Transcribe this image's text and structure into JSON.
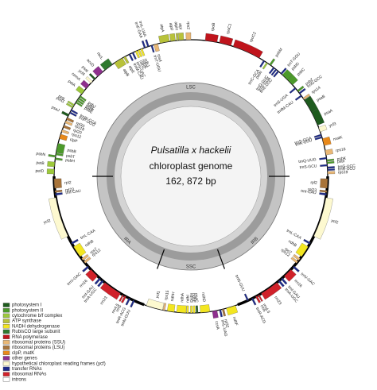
{
  "genome": {
    "title": "Pulsatilla x hackelii",
    "subtitle": "chloroplast genome",
    "length": "162, 872 bp"
  },
  "regions": {
    "lsc": "LSC",
    "ssc": "SSC",
    "ira": "IRA",
    "irb": "IRB"
  },
  "genes": [
    {
      "label": "petD",
      "color": "#9dc93b"
    },
    {
      "label": "petB",
      "color": "#9dc93b"
    },
    {
      "label": "psbH",
      "color": "#4c9a2a"
    },
    {
      "label": "psbN",
      "color": "#4c9a2a"
    },
    {
      "label": "psbT",
      "color": "#4c9a2a"
    },
    {
      "label": "psbB",
      "color": "#4c9a2a"
    },
    {
      "label": "clpP",
      "color": "#e8891a"
    },
    {
      "label": "rps12",
      "color": "#e9b774"
    },
    {
      "label": "rpl20",
      "color": "#a8743a"
    },
    {
      "label": "rps18",
      "color": "#e9b774"
    },
    {
      "label": "rpl33",
      "color": "#a8743a"
    },
    {
      "label": "psaJ",
      "color": "#1e5b1e"
    },
    {
      "label": "trnP-UGG",
      "color": "#1d2a8a"
    },
    {
      "label": "trnW-CCA",
      "color": "#1d2a8a"
    },
    {
      "label": "petG",
      "color": "#9dc93b"
    },
    {
      "label": "petL",
      "color": "#9dc93b"
    },
    {
      "label": "psbE",
      "color": "#4c9a2a"
    },
    {
      "label": "psbF",
      "color": "#4c9a2a"
    },
    {
      "label": "psbL",
      "color": "#4c9a2a"
    },
    {
      "label": "psbJ",
      "color": "#4c9a2a"
    },
    {
      "label": "petA",
      "color": "#9dc93b"
    },
    {
      "label": "cemA",
      "color": "#8e2f8e"
    },
    {
      "label": "ycf4",
      "color": "#fdf9d0"
    },
    {
      "label": "psaI",
      "color": "#1e5b1e"
    },
    {
      "label": "accD",
      "color": "#8e2f8e"
    },
    {
      "label": "rbcL",
      "color": "#2f7a2f"
    },
    {
      "label": "atpB",
      "color": "#b8c23a"
    },
    {
      "label": "atpE",
      "color": "#b8c23a"
    },
    {
      "label": "trnM-CAU",
      "color": "#1d2a8a"
    },
    {
      "label": "trnV-UAC",
      "color": "#1d2a8a"
    },
    {
      "label": "ndhC",
      "color": "#f3e621"
    },
    {
      "label": "ndhK",
      "color": "#f3e621"
    },
    {
      "label": "ndhJ",
      "color": "#f3e621"
    },
    {
      "label": "trnF-GAA",
      "color": "#1d2a8a"
    },
    {
      "label": "trnL-UAA",
      "color": "#1d2a8a"
    },
    {
      "label": "trnT-UGU",
      "color": "#1d2a8a"
    },
    {
      "label": "rps4",
      "color": "#e9b774"
    },
    {
      "label": "atpA",
      "color": "#b8c23a"
    },
    {
      "label": "atpF",
      "color": "#b8c23a"
    },
    {
      "label": "atpH",
      "color": "#b8c23a"
    },
    {
      "label": "atpI",
      "color": "#b8c23a"
    },
    {
      "label": "rps2",
      "color": "#e9b774"
    },
    {
      "label": "rpoB",
      "color": "#c0141c"
    },
    {
      "label": "rpoC1",
      "color": "#c0141c"
    },
    {
      "label": "rpoC2",
      "color": "#c0141c"
    },
    {
      "label": "trnC-GCA",
      "color": "#1d2a8a"
    },
    {
      "label": "petN",
      "color": "#9dc93b"
    },
    {
      "label": "psbM",
      "color": "#4c9a2a"
    },
    {
      "label": "trnD-GUC",
      "color": "#1d2a8a"
    },
    {
      "label": "trnY-GUA",
      "color": "#1d2a8a"
    },
    {
      "label": "trnE-UUC",
      "color": "#1d2a8a"
    },
    {
      "label": "trnT-GGU",
      "color": "#1d2a8a"
    },
    {
      "label": "psbD",
      "color": "#4c9a2a"
    },
    {
      "label": "psbC",
      "color": "#4c9a2a"
    },
    {
      "label": "trnS-UGA",
      "color": "#1d2a8a"
    },
    {
      "label": "psbZ",
      "color": "#4c9a2a"
    },
    {
      "label": "trnG-GCC",
      "color": "#1d2a8a"
    },
    {
      "label": "trnfM-CAU",
      "color": "#1d2a8a"
    },
    {
      "label": "rps14",
      "color": "#e9b774"
    },
    {
      "label": "psaB",
      "color": "#1e5b1e"
    },
    {
      "label": "psaA",
      "color": "#1e5b1e"
    },
    {
      "label": "ycf3",
      "color": "#fdf9d0"
    },
    {
      "label": "trnS-GGA",
      "color": "#1d2a8a"
    },
    {
      "label": "trnK-UUU",
      "color": "#1d2a8a"
    },
    {
      "label": "matK",
      "color": "#e8891a"
    },
    {
      "label": "rps16",
      "color": "#e9b774"
    },
    {
      "label": "trnQ-UUG",
      "color": "#1d2a8a"
    },
    {
      "label": "psbK",
      "color": "#4c9a2a"
    },
    {
      "label": "psbI",
      "color": "#4c9a2a"
    },
    {
      "label": "trnS-GCU",
      "color": "#1d2a8a"
    },
    {
      "label": "trnG-UCC",
      "color": "#1d2a8a"
    },
    {
      "label": "trnR-UCU",
      "color": "#1d2a8a"
    },
    {
      "label": "rps19",
      "color": "#e9b774"
    },
    {
      "label": "rpl2",
      "color": "#a8743a"
    },
    {
      "label": "rpl23",
      "color": "#a8743a"
    },
    {
      "label": "trnI-CAU",
      "color": "#1d2a8a"
    },
    {
      "label": "ycf2",
      "color": "#fdf9d0"
    },
    {
      "label": "trnL-CAA",
      "color": "#1d2a8a"
    },
    {
      "label": "ndhB",
      "color": "#f3e621"
    },
    {
      "label": "rps7",
      "color": "#e9b774"
    },
    {
      "label": "rps12",
      "color": "#e9b774"
    },
    {
      "label": "trnV-GAC",
      "color": "#1d2a8a"
    },
    {
      "label": "rrn16",
      "color": "#d0212a"
    },
    {
      "label": "trnI-GAU",
      "color": "#1d2a8a"
    },
    {
      "label": "trnA-UGC",
      "color": "#1d2a8a"
    },
    {
      "label": "rrn23",
      "color": "#d0212a"
    },
    {
      "label": "rrn4.5",
      "color": "#d0212a"
    },
    {
      "label": "rrn5",
      "color": "#d0212a"
    },
    {
      "label": "trnR-ACG",
      "color": "#1d2a8a"
    },
    {
      "label": "trnN-GUU",
      "color": "#1d2a8a"
    },
    {
      "label": "ndhF",
      "color": "#f3e621"
    },
    {
      "label": "rpl32",
      "color": "#a8743a"
    },
    {
      "label": "trnL-UAG",
      "color": "#1d2a8a"
    },
    {
      "label": "ccsA",
      "color": "#8e2f8e"
    },
    {
      "label": "ndhD",
      "color": "#f3e621"
    },
    {
      "label": "psaC",
      "color": "#1e5b1e"
    },
    {
      "label": "ndhE",
      "color": "#f3e621"
    },
    {
      "label": "ndhG",
      "color": "#f3e621"
    },
    {
      "label": "ndhI",
      "color": "#f3e621"
    },
    {
      "label": "ndhA",
      "color": "#f3e621"
    },
    {
      "label": "ndhH",
      "color": "#f3e621"
    },
    {
      "label": "rps15",
      "color": "#e9b774"
    },
    {
      "label": "ycf1",
      "color": "#fdf9d0"
    },
    {
      "label": "trnN-GUU",
      "color": "#1d2a8a"
    },
    {
      "label": "trnR-ACG",
      "color": "#1d2a8a"
    },
    {
      "label": "rrn5",
      "color": "#d0212a"
    },
    {
      "label": "rrn4.5",
      "color": "#d0212a"
    },
    {
      "label": "rrn23",
      "color": "#d0212a"
    },
    {
      "label": "trnA-UGC",
      "color": "#1d2a8a"
    },
    {
      "label": "trnI-GAU",
      "color": "#1d2a8a"
    },
    {
      "label": "rrn16",
      "color": "#d0212a"
    },
    {
      "label": "trnV-GAC",
      "color": "#1d2a8a"
    },
    {
      "label": "rps12",
      "color": "#e9b774"
    },
    {
      "label": "rps7",
      "color": "#e9b774"
    },
    {
      "label": "ndhB",
      "color": "#f3e621"
    },
    {
      "label": "trnL-CAA",
      "color": "#1d2a8a"
    },
    {
      "label": "ycf2",
      "color": "#fdf9d0"
    },
    {
      "label": "trnI-CAU",
      "color": "#1d2a8a"
    },
    {
      "label": "rpl23",
      "color": "#a8743a"
    },
    {
      "label": "rpl2",
      "color": "#a8743a"
    }
  ],
  "legend": [
    {
      "label": "photosystem I",
      "color": "#1e5b1e"
    },
    {
      "label": "photosystem II",
      "color": "#4c9a2a"
    },
    {
      "label": "cytochrome b/f complex",
      "color": "#9dc93b"
    },
    {
      "label": "ATP synthase",
      "color": "#b8c23a"
    },
    {
      "label": "NADH dehydrogenase",
      "color": "#f3e621"
    },
    {
      "label": "RubisCO large subunit",
      "color": "#2f7a2f"
    },
    {
      "label": "RNA polymerase",
      "color": "#c0141c"
    },
    {
      "label": "ribosomal proteins (SSU)",
      "color": "#e9b774"
    },
    {
      "label": "ribosomal proteins (LSU)",
      "color": "#a8743a"
    },
    {
      "label": "clpP, matK",
      "color": "#e8891a"
    },
    {
      "label": "other genes",
      "color": "#8e2f8e"
    },
    {
      "label": "hypothetical chloroplast reading frames (ycf)",
      "color": "#fdf9d0"
    },
    {
      "label": "transfer RNAs",
      "color": "#1d2a8a"
    },
    {
      "label": "ribosomal RNAs",
      "color": "#d0212a"
    },
    {
      "label": "introns",
      "color": "#ffffff"
    }
  ]
}
